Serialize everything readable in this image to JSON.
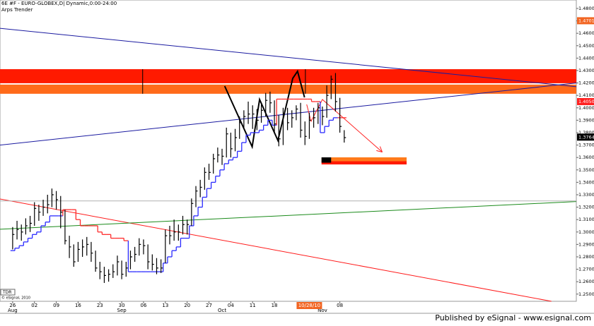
{
  "chart_data": {
    "type": "ohlc",
    "title": "6E #F - EURO-GLOBEX,D| Dynamic,0:00-24:00",
    "subtitle": "Arps Trender",
    "copyright": "© eSignal, 2010",
    "badge": "TDR",
    "footer": "Published by eSignal - www.esignal.com",
    "bar_color": "#000000",
    "stop_up_color": "#2b2bff",
    "stop_down_color": "#ff2b2b",
    "xlim": [
      -2.9,
      129.2
    ],
    "ylim": [
      1.2442,
      1.4868
    ],
    "yticks": [
      {
        "value": 1.25,
        "label": "1.2500"
      },
      {
        "value": 1.26,
        "label": "1.2600"
      },
      {
        "value": 1.27,
        "label": "1.2700"
      },
      {
        "value": 1.28,
        "label": "1.2800"
      },
      {
        "value": 1.29,
        "label": "1.2900"
      },
      {
        "value": 1.3,
        "label": "1.3000"
      },
      {
        "value": 1.31,
        "label": "1.3100"
      },
      {
        "value": 1.32,
        "label": "1.3200"
      },
      {
        "value": 1.33,
        "label": "1.3300"
      },
      {
        "value": 1.34,
        "label": "1.3400"
      },
      {
        "value": 1.35,
        "label": "1.3500"
      },
      {
        "value": 1.36,
        "label": "1.3600"
      },
      {
        "value": 1.37,
        "label": "1.3700"
      },
      {
        "value": 1.38,
        "label": "1.3800"
      },
      {
        "value": 1.39,
        "label": "1.3900"
      },
      {
        "value": 1.4,
        "label": "1.4000"
      },
      {
        "value": 1.41,
        "label": "1.4100"
      },
      {
        "value": 1.42,
        "label": "1.4200"
      },
      {
        "value": 1.43,
        "label": "1.4300"
      },
      {
        "value": 1.44,
        "label": "1.4400"
      },
      {
        "value": 1.45,
        "label": "1.4500"
      },
      {
        "value": 1.46,
        "label": "1.4600"
      },
      {
        "value": 1.47,
        "label": "1.4700"
      },
      {
        "value": 1.48,
        "label": "1.4800"
      }
    ],
    "xticks": [
      {
        "value": 0,
        "label": "26"
      },
      {
        "value": 5,
        "label": "02"
      },
      {
        "value": 10,
        "label": "09"
      },
      {
        "value": 15,
        "label": "16"
      },
      {
        "value": 20,
        "label": "23"
      },
      {
        "value": 25,
        "label": "30"
      },
      {
        "value": 30,
        "label": "06"
      },
      {
        "value": 35,
        "label": "13"
      },
      {
        "value": 40,
        "label": "20"
      },
      {
        "value": 45,
        "label": "27"
      },
      {
        "value": 50,
        "label": "04"
      },
      {
        "value": 55,
        "label": "11"
      },
      {
        "value": 60,
        "label": "18"
      },
      {
        "value": 75,
        "label": "08"
      }
    ],
    "months": [
      {
        "value": 0,
        "label": "Aug"
      },
      {
        "value": 25,
        "label": "Sep"
      },
      {
        "value": 48,
        "label": "Oct"
      },
      {
        "value": 71,
        "label": "Nov"
      }
    ],
    "cursor_date": {
      "value": 68,
      "label": "10/28/10"
    },
    "price_labels": [
      {
        "value": 1.4701,
        "label": "1.4701",
        "color": "#f26522"
      },
      {
        "value": 1.405,
        "label": "1.4050",
        "color": "#ff2020"
      },
      {
        "value": 1.3764,
        "label": "1.3764",
        "color": "#000000"
      }
    ],
    "close": [
      1.298,
      1.302,
      1.3,
      1.305,
      1.307,
      1.319,
      1.316,
      1.32,
      1.322,
      1.33,
      1.326,
      1.316,
      1.293,
      1.288,
      1.276,
      1.286,
      1.288,
      1.29,
      1.283,
      1.271,
      1.268,
      1.265,
      1.266,
      1.268,
      1.276,
      1.266,
      1.271,
      1.28,
      1.282,
      1.29,
      1.289,
      1.276,
      1.274,
      1.271,
      1.271,
      1.297,
      1.297,
      1.3,
      1.3,
      1.306,
      1.306,
      1.323,
      1.333,
      1.336,
      1.348,
      1.348,
      1.359,
      1.362,
      1.361,
      1.379,
      1.367,
      1.376,
      1.388,
      1.393,
      1.395,
      1.395,
      1.39,
      1.398,
      1.406,
      1.404,
      1.387,
      1.375,
      1.395,
      1.388,
      1.392,
      1.399,
      1.382,
      1.377,
      1.39,
      1.392,
      1.4,
      1.393,
      1.41,
      1.423,
      1.405,
      1.385,
      1.376
    ],
    "high": [
      1.304,
      1.309,
      1.306,
      1.311,
      1.313,
      1.324,
      1.322,
      1.326,
      1.33,
      1.335,
      1.333,
      1.329,
      1.318,
      1.297,
      1.29,
      1.292,
      1.294,
      1.296,
      1.292,
      1.285,
      1.276,
      1.272,
      1.27,
      1.274,
      1.281,
      1.277,
      1.276,
      1.285,
      1.288,
      1.295,
      1.294,
      1.29,
      1.282,
      1.279,
      1.278,
      1.302,
      1.305,
      1.31,
      1.306,
      1.313,
      1.31,
      1.327,
      1.337,
      1.342,
      1.352,
      1.355,
      1.363,
      1.368,
      1.367,
      1.384,
      1.38,
      1.383,
      1.393,
      1.398,
      1.405,
      1.402,
      1.399,
      1.404,
      1.412,
      1.413,
      1.406,
      1.394,
      1.4,
      1.4,
      1.398,
      1.402,
      1.404,
      1.389,
      1.396,
      1.4,
      1.404,
      1.401,
      1.418,
      1.426,
      1.428,
      1.408,
      1.382
    ],
    "low": [
      1.286,
      1.294,
      1.293,
      1.298,
      1.3,
      1.305,
      1.309,
      1.313,
      1.315,
      1.32,
      1.318,
      1.303,
      1.29,
      1.279,
      1.272,
      1.276,
      1.28,
      1.281,
      1.276,
      1.268,
      1.262,
      1.259,
      1.26,
      1.263,
      1.265,
      1.262,
      1.264,
      1.27,
      1.276,
      1.281,
      1.282,
      1.27,
      1.269,
      1.266,
      1.267,
      1.275,
      1.29,
      1.293,
      1.293,
      1.298,
      1.298,
      1.305,
      1.32,
      1.328,
      1.334,
      1.342,
      1.347,
      1.356,
      1.354,
      1.36,
      1.36,
      1.365,
      1.375,
      1.384,
      1.387,
      1.383,
      1.382,
      1.388,
      1.393,
      1.396,
      1.38,
      1.369,
      1.37,
      1.382,
      1.384,
      1.39,
      1.376,
      1.37,
      1.375,
      1.384,
      1.387,
      1.386,
      1.392,
      1.407,
      1.397,
      1.38,
      1.372
    ],
    "stop": [
      1.285,
      1.287,
      1.289,
      1.292,
      1.295,
      1.298,
      1.3,
      1.305,
      1.308,
      1.313,
      1.313,
      1.313,
      1.318,
      1.318,
      1.318,
      1.31,
      1.305,
      1.305,
      1.305,
      1.305,
      1.3,
      1.298,
      1.298,
      1.295,
      1.295,
      1.295,
      1.293,
      1.268,
      1.268,
      1.268,
      1.268,
      1.268,
      1.268,
      1.268,
      1.268,
      1.275,
      1.28,
      1.285,
      1.288,
      1.295,
      1.295,
      1.305,
      1.313,
      1.32,
      1.328,
      1.335,
      1.34,
      1.345,
      1.35,
      1.355,
      1.358,
      1.36,
      1.365,
      1.372,
      1.378,
      1.38,
      1.38,
      1.382,
      1.386,
      1.39,
      1.386,
      1.407,
      1.407,
      1.407,
      1.407,
      1.407,
      1.407,
      1.407,
      1.407,
      1.405,
      1.405,
      1.38,
      1.385,
      1.39,
      1.392,
      1.392,
      1.392
    ],
    "overlays": [
      {
        "kind": "band",
        "color": "#ff1a00",
        "x": [
          -2.9,
          129.2
        ],
        "values": [
          1.4198,
          1.4311
        ]
      },
      {
        "kind": "band",
        "color": "#ff6a1a",
        "x": [
          -2.9,
          129.2
        ],
        "values": [
          1.4113,
          1.4187
        ]
      },
      {
        "kind": "band",
        "color": "#ff7a1a",
        "x": [
          70.8,
          90.3
        ],
        "values": [
          1.357,
          1.3601
        ]
      },
      {
        "kind": "band",
        "color": "#ff1a00",
        "x": [
          70.8,
          90.3
        ],
        "values": [
          1.3544,
          1.357
        ]
      },
      {
        "kind": "band",
        "color": "#000000",
        "x": [
          70.8,
          73.0
        ],
        "values": [
          1.3558,
          1.3601
        ]
      },
      {
        "kind": "line",
        "color": "#000000",
        "x": [
          29.8,
          29.8
        ],
        "values": [
          1.4311,
          1.4113
        ]
      },
      {
        "kind": "line",
        "color": "#000000",
        "x": [
          67.1,
          67.1
        ],
        "values": [
          1.4311,
          1.4113
        ]
      },
      {
        "kind": "line",
        "color": "#1a1aa0",
        "x": [
          -2.9,
          129.2
        ],
        "values": [
          1.464,
          1.417
        ]
      },
      {
        "kind": "line",
        "color": "#1a1aa0",
        "x": [
          -2.9,
          129.2
        ],
        "values": [
          1.37,
          1.42
        ]
      },
      {
        "kind": "line",
        "color": "#ff1a1a",
        "x": [
          -2.9,
          123.5
        ],
        "values": [
          1.3266,
          1.2442
        ]
      },
      {
        "kind": "line",
        "color": "#1a8a1a",
        "x": [
          -2.9,
          129.2
        ],
        "values": [
          1.3022,
          1.3245
        ]
      },
      {
        "kind": "line",
        "color": "#b0b0b0",
        "x": [
          -2.9,
          129.2
        ],
        "values": [
          1.325,
          1.325
        ]
      },
      {
        "kind": "line",
        "color": "#000000",
        "width": 2,
        "x": [
          48.6,
          54.9,
          56.6,
          60.8,
          64.2,
          65.3,
          66.9
        ],
        "values": [
          1.4175,
          1.3686,
          1.4067,
          1.3737,
          1.4237,
          1.4294,
          1.4084
        ]
      },
      {
        "kind": "line",
        "color": "#ff2020",
        "arrow": true,
        "x": [
          67.4,
          68.4,
          71.0,
          84.6
        ],
        "values": [
          1.4027,
          1.3891,
          1.4067,
          1.3647
        ]
      }
    ]
  }
}
